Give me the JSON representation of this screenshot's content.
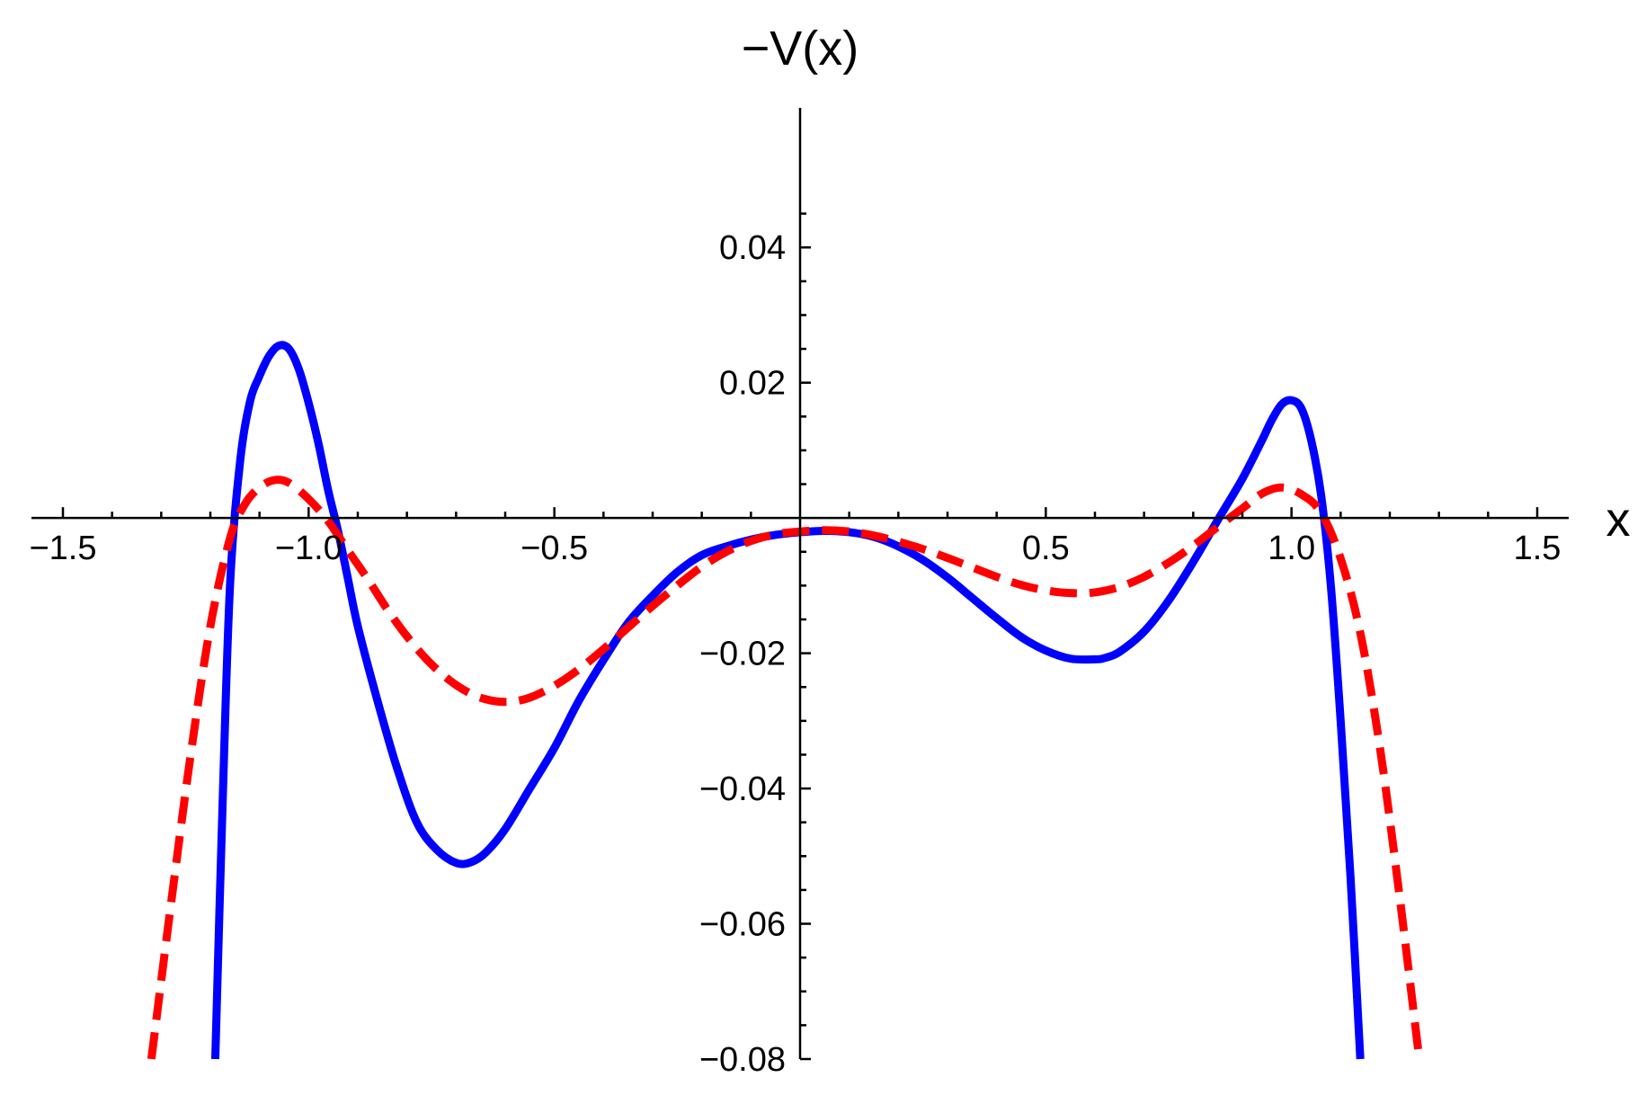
{
  "chart_data": {
    "type": "line",
    "title": "",
    "xlabel": "x",
    "ylabel": "−V(x)",
    "xlim": [
      -1.5,
      1.5
    ],
    "ylim": [
      -0.08,
      0.05
    ],
    "grid": false,
    "legend": "none",
    "x_ticks": [
      {
        "value": -1.5,
        "label": "−1.5"
      },
      {
        "value": -1.0,
        "label": "−1.0"
      },
      {
        "value": -0.5,
        "label": "−0.5"
      },
      {
        "value": 0.5,
        "label": "0.5"
      },
      {
        "value": 1.0,
        "label": "1.0"
      },
      {
        "value": 1.5,
        "label": "1.5"
      }
    ],
    "y_ticks": [
      {
        "value": 0.04,
        "label": "0.04"
      },
      {
        "value": 0.02,
        "label": "0.02"
      },
      {
        "value": -0.02,
        "label": "−0.02"
      },
      {
        "value": -0.04,
        "label": "−0.04"
      },
      {
        "value": -0.06,
        "label": "−0.06"
      },
      {
        "value": -0.08,
        "label": "−0.08"
      }
    ],
    "series": [
      {
        "color": "#0000ff",
        "style": "solid",
        "x": [
          -1.19,
          -1.175,
          -1.16,
          -1.14,
          -1.12,
          -1.1,
          -1.08,
          -1.06,
          -1.04,
          -1.02,
          -1.0,
          -0.98,
          -0.96,
          -0.94,
          -0.92,
          -0.9,
          -0.86,
          -0.82,
          -0.78,
          -0.74,
          -0.7,
          -0.67,
          -0.64,
          -0.6,
          -0.55,
          -0.5,
          -0.45,
          -0.4,
          -0.35,
          -0.3,
          -0.25,
          -0.2,
          -0.15,
          -0.1,
          -0.05,
          0.0,
          0.05,
          0.1,
          0.15,
          0.2,
          0.25,
          0.3,
          0.35,
          0.4,
          0.45,
          0.5,
          0.55,
          0.6,
          0.62,
          0.65,
          0.7,
          0.75,
          0.8,
          0.85,
          0.9,
          0.94,
          0.96,
          0.98,
          1.0,
          1.02,
          1.04,
          1.06,
          1.08,
          1.1,
          1.12,
          1.14
        ],
        "y": [
          -0.08,
          -0.042,
          -0.01,
          0.008,
          0.017,
          0.021,
          0.024,
          0.0255,
          0.025,
          0.022,
          0.017,
          0.011,
          0.004,
          -0.002,
          -0.009,
          -0.016,
          -0.027,
          -0.037,
          -0.045,
          -0.049,
          -0.051,
          -0.0509,
          -0.0495,
          -0.046,
          -0.04,
          -0.034,
          -0.027,
          -0.021,
          -0.0155,
          -0.0115,
          -0.008,
          -0.0055,
          -0.0042,
          -0.0032,
          -0.0025,
          -0.0021,
          -0.0019,
          -0.0021,
          -0.0028,
          -0.0042,
          -0.0062,
          -0.0088,
          -0.0118,
          -0.0148,
          -0.0176,
          -0.0196,
          -0.0208,
          -0.0209,
          -0.0207,
          -0.0198,
          -0.0168,
          -0.0122,
          -0.0065,
          -0.0003,
          0.0058,
          0.0115,
          0.0145,
          0.0168,
          0.0174,
          0.0162,
          0.0115,
          0.0035,
          -0.01,
          -0.03,
          -0.053,
          -0.08
        ]
      },
      {
        "color": "#ff0000",
        "style": "dashed",
        "x": [
          -1.32,
          -1.28,
          -1.24,
          -1.2,
          -1.16,
          -1.13,
          -1.1,
          -1.07,
          -1.04,
          -1.0,
          -0.96,
          -0.92,
          -0.88,
          -0.84,
          -0.8,
          -0.76,
          -0.72,
          -0.68,
          -0.64,
          -0.6,
          -0.56,
          -0.52,
          -0.48,
          -0.44,
          -0.4,
          -0.35,
          -0.3,
          -0.25,
          -0.2,
          -0.15,
          -0.1,
          -0.05,
          0.0,
          0.05,
          0.1,
          0.15,
          0.2,
          0.25,
          0.3,
          0.35,
          0.4,
          0.45,
          0.5,
          0.55,
          0.6,
          0.65,
          0.7,
          0.75,
          0.8,
          0.85,
          0.9,
          0.94,
          0.98,
          1.02,
          1.06,
          1.1,
          1.14,
          1.18,
          1.22,
          1.26
        ],
        "y": [
          -0.08,
          -0.057,
          -0.035,
          -0.016,
          -0.003,
          0.002,
          0.0045,
          0.0056,
          0.0052,
          0.0028,
          -0.0005,
          -0.0048,
          -0.009,
          -0.0135,
          -0.0175,
          -0.0209,
          -0.0236,
          -0.0256,
          -0.0268,
          -0.0272,
          -0.0268,
          -0.0256,
          -0.0239,
          -0.0218,
          -0.0194,
          -0.0162,
          -0.013,
          -0.01,
          -0.0072,
          -0.005,
          -0.0034,
          -0.0024,
          -0.002,
          -0.0018,
          -0.002,
          -0.0026,
          -0.0035,
          -0.0046,
          -0.0059,
          -0.0073,
          -0.0087,
          -0.0099,
          -0.0107,
          -0.0111,
          -0.011,
          -0.0102,
          -0.0087,
          -0.0066,
          -0.0041,
          -0.0013,
          0.0014,
          0.0036,
          0.0045,
          0.0035,
          0.0008,
          -0.006,
          -0.017,
          -0.034,
          -0.056,
          -0.08
        ]
      }
    ]
  }
}
